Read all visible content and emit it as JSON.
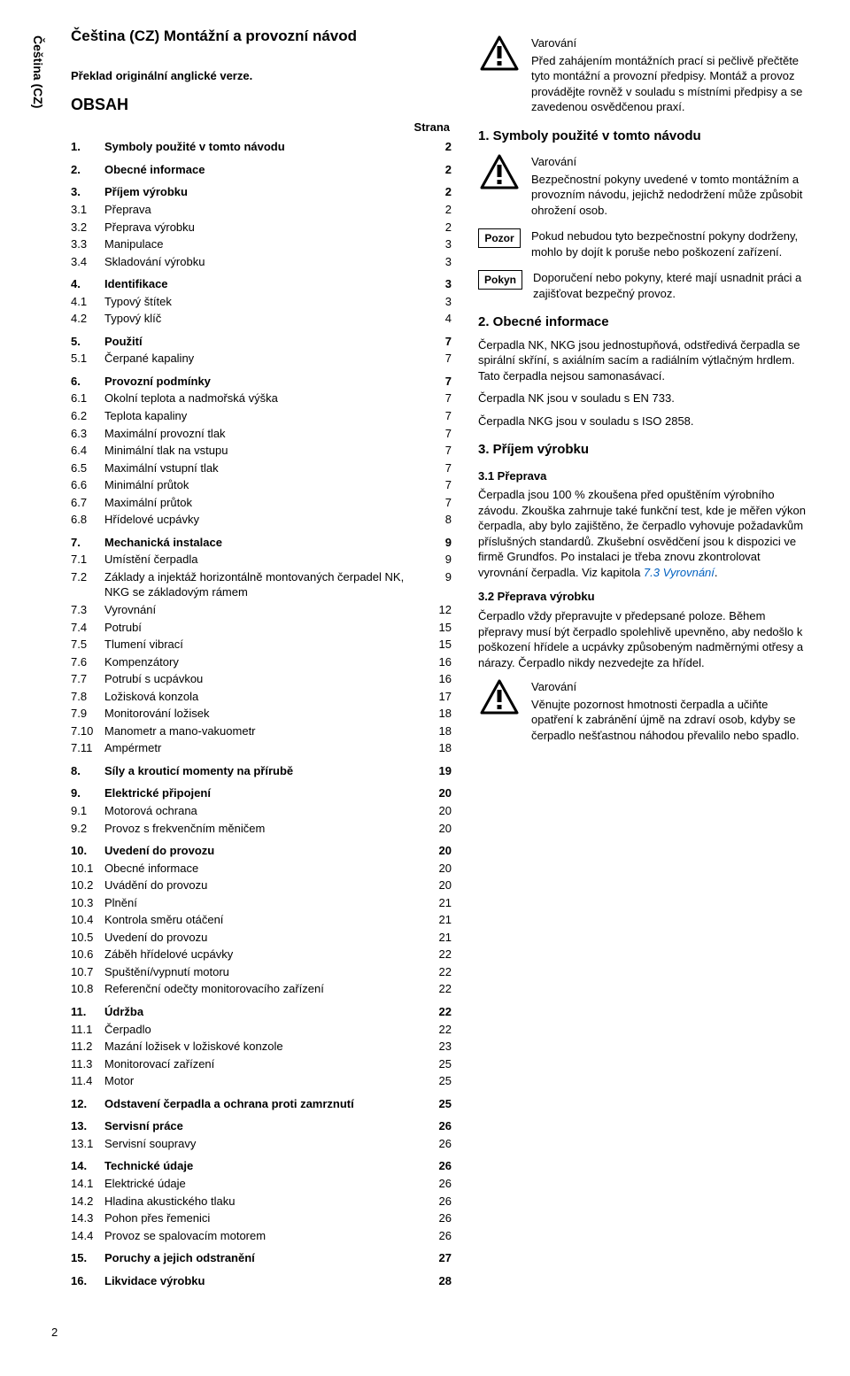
{
  "side_tab": "Čeština (CZ)",
  "doc_title": "Čeština (CZ) Montážní a provozní návod",
  "subtitle": "Překlad originální anglické verze.",
  "obsah_label": "OBSAH",
  "strana_label": "Strana",
  "page_number": "2",
  "toc": [
    {
      "n": "1.",
      "t": "Symboly použité v tomto návodu",
      "p": "2",
      "bold": true,
      "first": true
    },
    {
      "n": "2.",
      "t": "Obecné informace",
      "p": "2",
      "bold": true,
      "group": true
    },
    {
      "n": "3.",
      "t": "Příjem výrobku",
      "p": "2",
      "bold": true,
      "group": true
    },
    {
      "n": "3.1",
      "t": "Přeprava",
      "p": "2"
    },
    {
      "n": "3.2",
      "t": "Přeprava výrobku",
      "p": "2"
    },
    {
      "n": "3.3",
      "t": "Manipulace",
      "p": "3"
    },
    {
      "n": "3.4",
      "t": "Skladování výrobku",
      "p": "3"
    },
    {
      "n": "4.",
      "t": "Identifikace",
      "p": "3",
      "bold": true,
      "group": true
    },
    {
      "n": "4.1",
      "t": "Typový štítek",
      "p": "3"
    },
    {
      "n": "4.2",
      "t": "Typový klíč",
      "p": "4"
    },
    {
      "n": "5.",
      "t": "Použití",
      "p": "7",
      "bold": true,
      "group": true
    },
    {
      "n": "5.1",
      "t": "Čerpané kapaliny",
      "p": "7"
    },
    {
      "n": "6.",
      "t": "Provozní podmínky",
      "p": "7",
      "bold": true,
      "group": true
    },
    {
      "n": "6.1",
      "t": "Okolní teplota a nadmořská výška",
      "p": "7"
    },
    {
      "n": "6.2",
      "t": "Teplota kapaliny",
      "p": "7"
    },
    {
      "n": "6.3",
      "t": "Maximální provozní tlak",
      "p": "7"
    },
    {
      "n": "6.4",
      "t": "Minimální tlak na vstupu",
      "p": "7"
    },
    {
      "n": "6.5",
      "t": "Maximální vstupní tlak",
      "p": "7"
    },
    {
      "n": "6.6",
      "t": "Minimální průtok",
      "p": "7"
    },
    {
      "n": "6.7",
      "t": "Maximální průtok",
      "p": "7"
    },
    {
      "n": "6.8",
      "t": "Hřídelové ucpávky",
      "p": "8"
    },
    {
      "n": "7.",
      "t": "Mechanická instalace",
      "p": "9",
      "bold": true,
      "group": true
    },
    {
      "n": "7.1",
      "t": "Umístění čerpadla",
      "p": "9"
    },
    {
      "n": "7.2",
      "t": "Základy a injektáž horizontálně montovaných čerpadel NK, NKG se základovým rámem",
      "p": "9"
    },
    {
      "n": "7.3",
      "t": "Vyrovnání",
      "p": "12"
    },
    {
      "n": "7.4",
      "t": "Potrubí",
      "p": "15"
    },
    {
      "n": "7.5",
      "t": "Tlumení vibrací",
      "p": "15"
    },
    {
      "n": "7.6",
      "t": "Kompenzátory",
      "p": "16"
    },
    {
      "n": "7.7",
      "t": "Potrubí s ucpávkou",
      "p": "16"
    },
    {
      "n": "7.8",
      "t": "Ložisková konzola",
      "p": "17"
    },
    {
      "n": "7.9",
      "t": "Monitorování ložisek",
      "p": "18"
    },
    {
      "n": "7.10",
      "t": "Manometr a mano-vakuometr",
      "p": "18"
    },
    {
      "n": "7.11",
      "t": "Ampérmetr",
      "p": "18"
    },
    {
      "n": "8.",
      "t": "Síly a krouticí momenty na přírubě",
      "p": "19",
      "bold": true,
      "group": true
    },
    {
      "n": "9.",
      "t": "Elektrické připojení",
      "p": "20",
      "bold": true,
      "group": true
    },
    {
      "n": "9.1",
      "t": "Motorová ochrana",
      "p": "20"
    },
    {
      "n": "9.2",
      "t": "Provoz s frekvenčním měničem",
      "p": "20"
    },
    {
      "n": "10.",
      "t": "Uvedení do provozu",
      "p": "20",
      "bold": true,
      "group": true
    },
    {
      "n": "10.1",
      "t": "Obecné informace",
      "p": "20"
    },
    {
      "n": "10.2",
      "t": "Uvádění do provozu",
      "p": "20"
    },
    {
      "n": "10.3",
      "t": "Plnění",
      "p": "21"
    },
    {
      "n": "10.4",
      "t": "Kontrola směru otáčení",
      "p": "21"
    },
    {
      "n": "10.5",
      "t": "Uvedení do provozu",
      "p": "21"
    },
    {
      "n": "10.6",
      "t": "Záběh hřídelové ucpávky",
      "p": "22"
    },
    {
      "n": "10.7",
      "t": "Spuštění/vypnutí motoru",
      "p": "22"
    },
    {
      "n": "10.8",
      "t": "Referenční odečty monitorovacího zařízení",
      "p": "22"
    },
    {
      "n": "11.",
      "t": "Údržba",
      "p": "22",
      "bold": true,
      "group": true
    },
    {
      "n": "11.1",
      "t": "Čerpadlo",
      "p": "22"
    },
    {
      "n": "11.2",
      "t": "Mazání ložisek v ložiskové konzole",
      "p": "23"
    },
    {
      "n": "11.3",
      "t": "Monitorovací zařízení",
      "p": "25"
    },
    {
      "n": "11.4",
      "t": "Motor",
      "p": "25"
    },
    {
      "n": "12.",
      "t": "Odstavení čerpadla a ochrana proti zamrznutí",
      "p": "25",
      "bold": true,
      "group": true
    },
    {
      "n": "13.",
      "t": "Servisní práce",
      "p": "26",
      "bold": true,
      "group": true
    },
    {
      "n": "13.1",
      "t": "Servisní soupravy",
      "p": "26"
    },
    {
      "n": "14.",
      "t": "Technické údaje",
      "p": "26",
      "bold": true,
      "group": true
    },
    {
      "n": "14.1",
      "t": "Elektrické údaje",
      "p": "26"
    },
    {
      "n": "14.2",
      "t": "Hladina akustického tlaku",
      "p": "26"
    },
    {
      "n": "14.3",
      "t": "Pohon přes řemenici",
      "p": "26"
    },
    {
      "n": "14.4",
      "t": "Provoz se spalovacím motorem",
      "p": "26"
    },
    {
      "n": "15.",
      "t": "Poruchy a jejich odstranění",
      "p": "27",
      "bold": true,
      "group": true
    },
    {
      "n": "16.",
      "t": "Likvidace výrobku",
      "p": "28",
      "bold": true,
      "group": true
    }
  ],
  "right": {
    "warn1": {
      "title": "Varování",
      "text": "Před zahájením montážních prací si pečlivě přečtěte tyto montážní a provozní předpisy. Montáž a provoz provádějte rovněž v souladu s místními předpisy a se zavedenou osvědčenou praxí."
    },
    "sec1_title": "1. Symboly použité v tomto návodu",
    "warn2": {
      "title": "Varování",
      "text": "Bezpečnostní pokyny uvedené v tomto montážním a provozním návodu, jejichž nedodržení může způsobit ohrožení osob."
    },
    "pozor": {
      "label": "Pozor",
      "text": "Pokud nebudou tyto bezpečnostní pokyny dodrženy, mohlo by dojít k poruše nebo poškození zařízení."
    },
    "pokyn": {
      "label": "Pokyn",
      "text": "Doporučení nebo pokyny, které mají usnadnit práci a zajišťovat bezpečný provoz."
    },
    "sec2_title": "2. Obecné informace",
    "sec2_p1": "Čerpadla NK, NKG jsou jednostupňová, odstředivá čerpadla se spirální skříní, s axiálním sacím a radiálním výtlačným hrdlem. Tato čerpadla nejsou samonasávací.",
    "sec2_p2": "Čerpadla NK jsou v souladu s EN 733.",
    "sec2_p3": "Čerpadla NKG jsou v souladu s ISO 2858.",
    "sec3_title": "3. Příjem výrobku",
    "sec31_title": "3.1 Přeprava",
    "sec31_p": "Čerpadla jsou 100 % zkoušena před opuštěním výrobního závodu. Zkouška zahrnuje také funkční test, kde je měřen výkon čerpadla, aby bylo zajištěno, že čerpadlo vyhovuje požadavkům příslušných standardů. Zkušební osvědčení jsou k dispozici ve firmě Grundfos. Po instalaci je třeba znovu zkontrolovat vyrovnání čerpadla. Viz kapitola ",
    "sec31_link": "7.3 Vyrovnání",
    "sec31_dot": ".",
    "sec32_title": "3.2 Přeprava výrobku",
    "sec32_p": "Čerpadlo vždy přepravujte v předepsané poloze. Během přepravy musí být čerpadlo spolehlivě upevněno, aby nedošlo k poškození hřídele a ucpávky způsobeným nadměrnými otřesy a nárazy. Čerpadlo nikdy nezvedejte za hřídel.",
    "warn3": {
      "title": "Varování",
      "text": "Věnujte pozornost hmotnosti čerpadla a učiňte opatření k zabránění újmě na zdraví osob, kdyby se čerpadlo nešťastnou náhodou převalilo nebo spadlo."
    }
  }
}
